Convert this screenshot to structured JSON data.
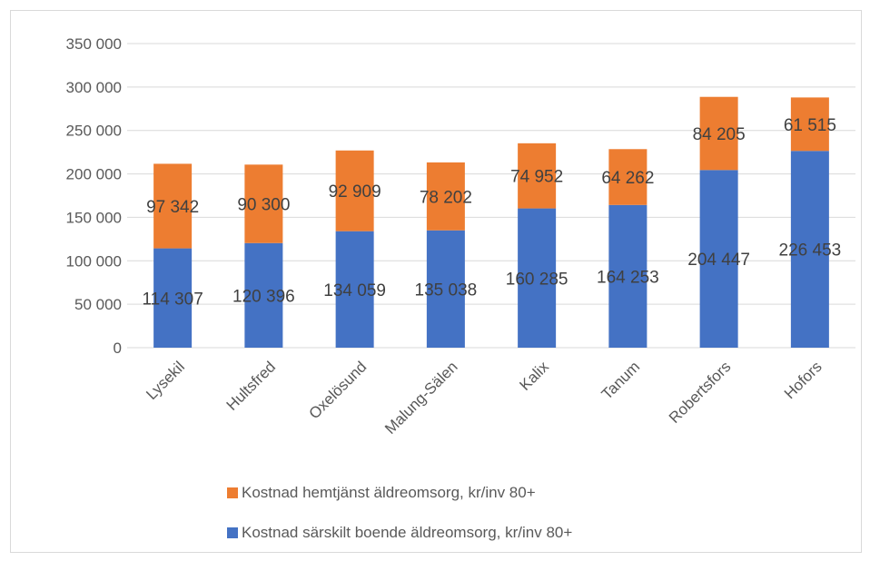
{
  "chart_data": {
    "type": "bar",
    "stacked": true,
    "categories": [
      "Lysekil",
      "Hultsfred",
      "Oxelösund",
      "Malung-Sälen",
      "Kalix",
      "Tanum",
      "Robertsfors",
      "Hofors"
    ],
    "series": [
      {
        "name": "Kostnad särskilt boende äldreomsorg, kr/inv 80+",
        "color": "#4472c4",
        "values": [
          114307,
          120396,
          134059,
          135038,
          160285,
          164253,
          204447,
          226453
        ],
        "labels": [
          "114 307",
          "120 396",
          "134 059",
          "135 038",
          "160 285",
          "164 253",
          "204 447",
          "226 453"
        ]
      },
      {
        "name": "Kostnad hemtjänst äldreomsorg, kr/inv 80+",
        "color": "#ed7d31",
        "values": [
          97342,
          90300,
          92909,
          78202,
          74952,
          64262,
          84205,
          61515
        ],
        "labels": [
          "97 342",
          "90 300",
          "92 909",
          "78 202",
          "74 952",
          "64 262",
          "84 205",
          "61 515"
        ]
      }
    ],
    "yticks": [
      0,
      50000,
      100000,
      150000,
      200000,
      250000,
      300000,
      350000
    ],
    "ytick_labels": [
      "0",
      "50 000",
      "100 000",
      "150 000",
      "200 000",
      "250 000",
      "300 000",
      "350 000"
    ],
    "ylim": [
      0,
      350000
    ],
    "grid": true,
    "legend_position": "bottom",
    "legend_order": [
      1,
      0
    ],
    "axis_color": "#d9d9d9",
    "grid_color": "#d9d9d9"
  }
}
